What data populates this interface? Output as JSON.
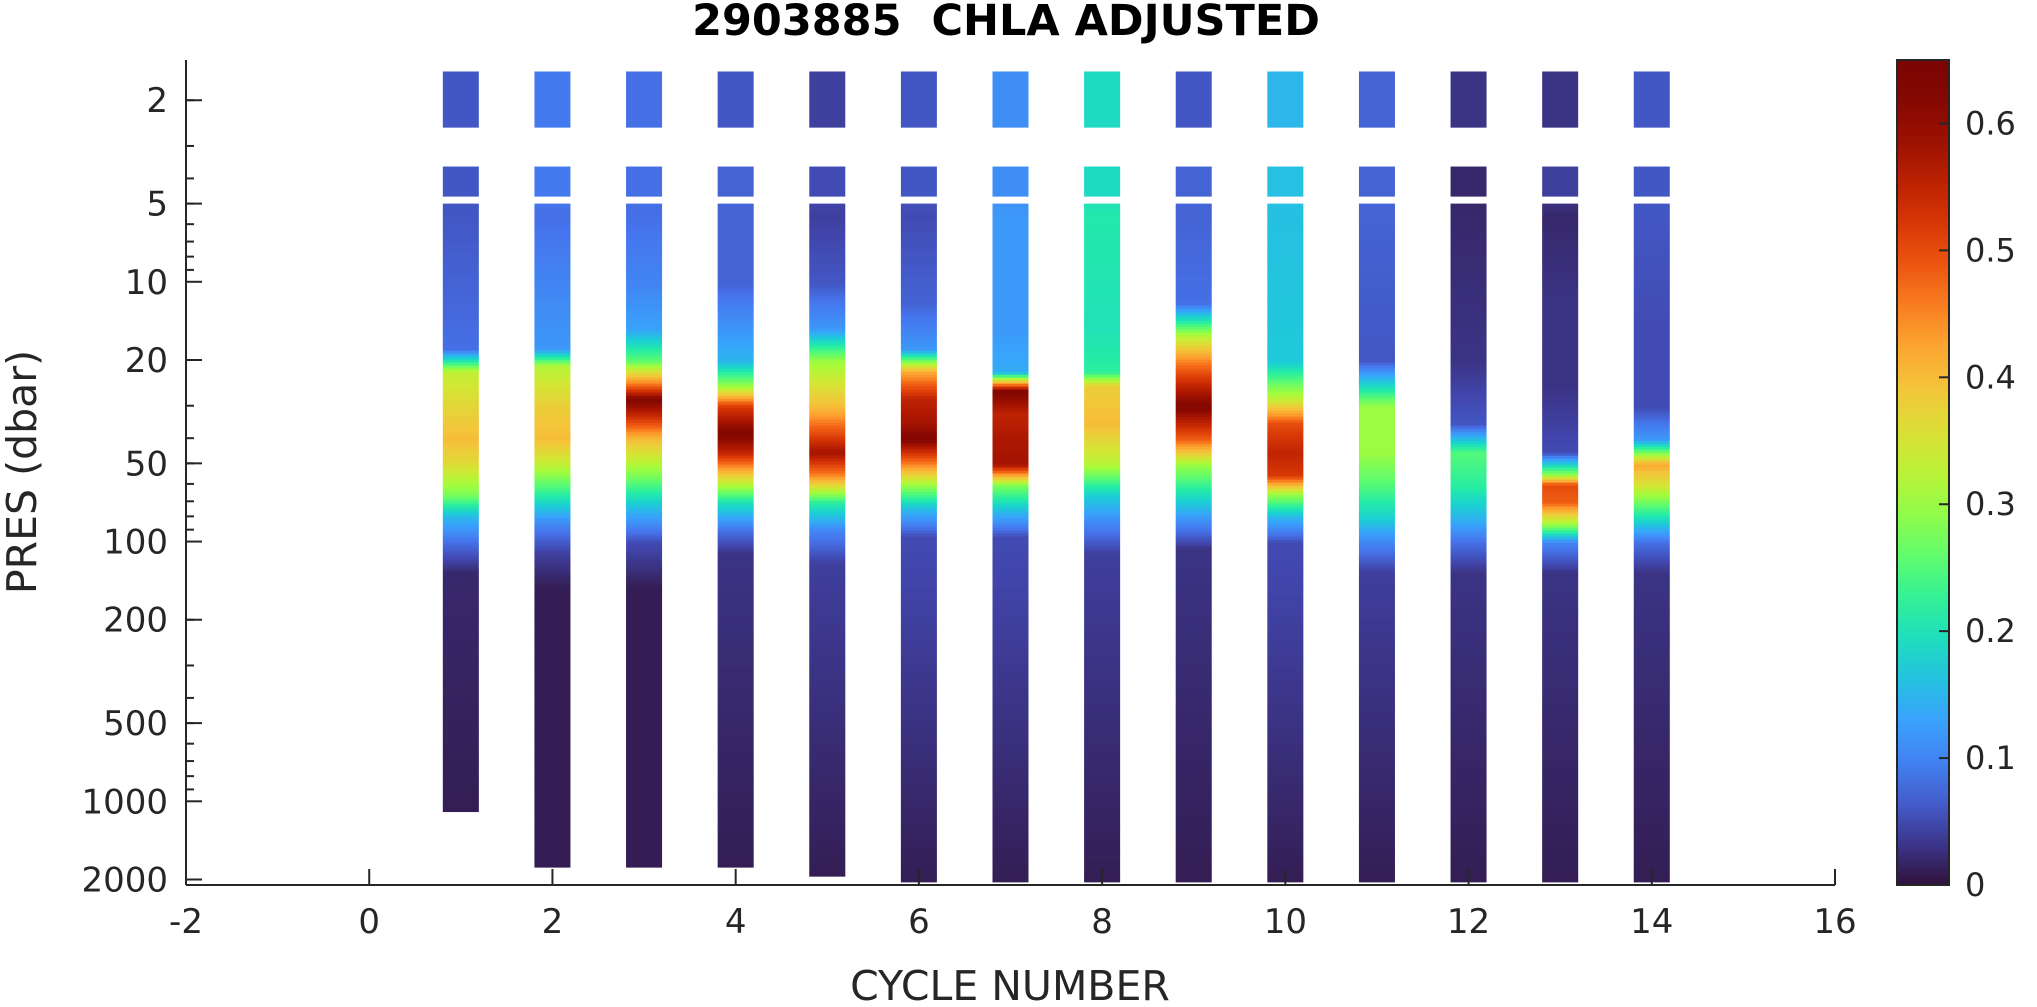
{
  "chart_data": {
    "type": "heatmap",
    "title": "2903885  CHLA ADJUSTED",
    "xlabel": "CYCLE NUMBER",
    "ylabel": "PRES (dbar)",
    "xlim": [
      -2,
      16
    ],
    "xticks": [
      -2,
      0,
      2,
      4,
      6,
      8,
      10,
      12,
      14,
      16
    ],
    "yscale": "log",
    "yreversed": true,
    "ylim": [
      1.4,
      2100
    ],
    "yticks": [
      2,
      5,
      10,
      20,
      50,
      100,
      200,
      500,
      1000,
      2000
    ],
    "colorbar": {
      "colormap": "turbo",
      "clim": [
        0,
        0.65
      ],
      "ticks": [
        0,
        0.1,
        0.2,
        0.3,
        0.4,
        0.5,
        0.6
      ],
      "tick_labels": [
        "0",
        "0.1",
        "0.2",
        "0.3",
        "0.4",
        "0.5",
        "0.6"
      ]
    },
    "profiles": [
      {
        "cycle": 1,
        "max_pres": 1100,
        "points": [
          [
            2,
            0.06
          ],
          [
            4.3,
            0.06
          ],
          [
            5.5,
            0.06
          ],
          [
            10,
            0.07
          ],
          [
            18,
            0.08
          ],
          [
            22,
            0.33
          ],
          [
            30,
            0.37
          ],
          [
            40,
            0.4
          ],
          [
            50,
            0.36
          ],
          [
            65,
            0.28
          ],
          [
            80,
            0.15
          ],
          [
            100,
            0.08
          ],
          [
            130,
            0.02
          ],
          [
            1100,
            0.01
          ]
        ]
      },
      {
        "cycle": 2,
        "max_pres": 1800,
        "points": [
          [
            2,
            0.09
          ],
          [
            4.3,
            0.09
          ],
          [
            5.5,
            0.08
          ],
          [
            10,
            0.1
          ],
          [
            18,
            0.12
          ],
          [
            21,
            0.32
          ],
          [
            30,
            0.38
          ],
          [
            40,
            0.4
          ],
          [
            50,
            0.33
          ],
          [
            65,
            0.22
          ],
          [
            85,
            0.1
          ],
          [
            110,
            0.04
          ],
          [
            150,
            0.01
          ],
          [
            1800,
            0.01
          ]
        ]
      },
      {
        "cycle": 3,
        "max_pres": 1800,
        "points": [
          [
            2,
            0.08
          ],
          [
            4.3,
            0.08
          ],
          [
            5.5,
            0.08
          ],
          [
            10,
            0.1
          ],
          [
            15,
            0.13
          ],
          [
            20,
            0.26
          ],
          [
            25,
            0.48
          ],
          [
            28,
            0.62
          ],
          [
            32,
            0.55
          ],
          [
            40,
            0.4
          ],
          [
            55,
            0.28
          ],
          [
            75,
            0.15
          ],
          [
            100,
            0.05
          ],
          [
            150,
            0.01
          ],
          [
            1800,
            0.01
          ]
        ]
      },
      {
        "cycle": 4,
        "max_pres": 1800,
        "points": [
          [
            2,
            0.06
          ],
          [
            4.3,
            0.07
          ],
          [
            5.5,
            0.07
          ],
          [
            10,
            0.07
          ],
          [
            20,
            0.15
          ],
          [
            25,
            0.3
          ],
          [
            30,
            0.52
          ],
          [
            38,
            0.62
          ],
          [
            45,
            0.55
          ],
          [
            55,
            0.38
          ],
          [
            70,
            0.2
          ],
          [
            90,
            0.08
          ],
          [
            110,
            0.03
          ],
          [
            1800,
            0.01
          ]
        ]
      },
      {
        "cycle": 5,
        "max_pres": 1950,
        "points": [
          [
            2,
            0.04
          ],
          [
            4.3,
            0.05
          ],
          [
            5.5,
            0.04
          ],
          [
            10,
            0.06
          ],
          [
            15,
            0.12
          ],
          [
            20,
            0.3
          ],
          [
            30,
            0.4
          ],
          [
            38,
            0.5
          ],
          [
            45,
            0.58
          ],
          [
            55,
            0.45
          ],
          [
            70,
            0.22
          ],
          [
            90,
            0.1
          ],
          [
            120,
            0.04
          ],
          [
            1950,
            0.01
          ]
        ]
      },
      {
        "cycle": 6,
        "max_pres": 2050,
        "points": [
          [
            2,
            0.06
          ],
          [
            4.3,
            0.06
          ],
          [
            5.5,
            0.05
          ],
          [
            12,
            0.07
          ],
          [
            18,
            0.12
          ],
          [
            22,
            0.42
          ],
          [
            28,
            0.55
          ],
          [
            35,
            0.58
          ],
          [
            40,
            0.62
          ],
          [
            50,
            0.45
          ],
          [
            60,
            0.3
          ],
          [
            75,
            0.15
          ],
          [
            95,
            0.05
          ],
          [
            2050,
            0.01
          ]
        ]
      },
      {
        "cycle": 7,
        "max_pres": 2050,
        "points": [
          [
            2,
            0.11
          ],
          [
            4.3,
            0.11
          ],
          [
            5.5,
            0.12
          ],
          [
            15,
            0.12
          ],
          [
            22,
            0.14
          ],
          [
            26,
            0.62
          ],
          [
            32,
            0.55
          ],
          [
            40,
            0.57
          ],
          [
            50,
            0.58
          ],
          [
            60,
            0.28
          ],
          [
            75,
            0.16
          ],
          [
            95,
            0.05
          ],
          [
            2050,
            0.01
          ]
        ]
      },
      {
        "cycle": 8,
        "max_pres": 2050,
        "points": [
          [
            2,
            0.19
          ],
          [
            4.3,
            0.19
          ],
          [
            5.5,
            0.21
          ],
          [
            15,
            0.2
          ],
          [
            22,
            0.22
          ],
          [
            25,
            0.38
          ],
          [
            35,
            0.4
          ],
          [
            50,
            0.32
          ],
          [
            65,
            0.18
          ],
          [
            85,
            0.1
          ],
          [
            110,
            0.04
          ],
          [
            2050,
            0.01
          ]
        ]
      },
      {
        "cycle": 9,
        "max_pres": 2050,
        "points": [
          [
            2,
            0.06
          ],
          [
            4.3,
            0.07
          ],
          [
            5.5,
            0.07
          ],
          [
            12,
            0.08
          ],
          [
            16,
            0.32
          ],
          [
            20,
            0.45
          ],
          [
            25,
            0.55
          ],
          [
            30,
            0.62
          ],
          [
            40,
            0.48
          ],
          [
            50,
            0.3
          ],
          [
            65,
            0.2
          ],
          [
            85,
            0.1
          ],
          [
            105,
            0.03
          ],
          [
            2050,
            0.01
          ]
        ]
      },
      {
        "cycle": 10,
        "max_pres": 2050,
        "points": [
          [
            2,
            0.15
          ],
          [
            4.3,
            0.16
          ],
          [
            5.5,
            0.16
          ],
          [
            20,
            0.17
          ],
          [
            28,
            0.33
          ],
          [
            35,
            0.5
          ],
          [
            45,
            0.55
          ],
          [
            55,
            0.52
          ],
          [
            65,
            0.3
          ],
          [
            80,
            0.15
          ],
          [
            100,
            0.05
          ],
          [
            2050,
            0.01
          ]
        ]
      },
      {
        "cycle": 11,
        "max_pres": 2050,
        "points": [
          [
            2,
            0.07
          ],
          [
            4.3,
            0.07
          ],
          [
            5.5,
            0.07
          ],
          [
            20,
            0.06
          ],
          [
            30,
            0.3
          ],
          [
            45,
            0.3
          ],
          [
            60,
            0.25
          ],
          [
            80,
            0.18
          ],
          [
            100,
            0.1
          ],
          [
            130,
            0.04
          ],
          [
            2050,
            0.01
          ]
        ]
      },
      {
        "cycle": 12,
        "max_pres": 2050,
        "points": [
          [
            2,
            0.03
          ],
          [
            4.3,
            0.02
          ],
          [
            5.5,
            0.02
          ],
          [
            20,
            0.03
          ],
          [
            35,
            0.06
          ],
          [
            45,
            0.25
          ],
          [
            60,
            0.22
          ],
          [
            80,
            0.15
          ],
          [
            100,
            0.08
          ],
          [
            130,
            0.03
          ],
          [
            2050,
            0.01
          ]
        ]
      },
      {
        "cycle": 13,
        "max_pres": 2050,
        "points": [
          [
            2,
            0.03
          ],
          [
            4.3,
            0.04
          ],
          [
            5.5,
            0.02
          ],
          [
            12,
            0.03
          ],
          [
            25,
            0.03
          ],
          [
            45,
            0.05
          ],
          [
            55,
            0.3
          ],
          [
            60,
            0.5
          ],
          [
            70,
            0.48
          ],
          [
            85,
            0.3
          ],
          [
            100,
            0.1
          ],
          [
            130,
            0.03
          ],
          [
            2050,
            0.01
          ]
        ]
      },
      {
        "cycle": 14,
        "max_pres": 2050,
        "points": [
          [
            2,
            0.06
          ],
          [
            4.3,
            0.06
          ],
          [
            5.5,
            0.06
          ],
          [
            15,
            0.05
          ],
          [
            30,
            0.05
          ],
          [
            40,
            0.12
          ],
          [
            50,
            0.42
          ],
          [
            60,
            0.35
          ],
          [
            80,
            0.2
          ],
          [
            100,
            0.08
          ],
          [
            130,
            0.03
          ],
          [
            2050,
            0.01
          ]
        ]
      }
    ]
  }
}
